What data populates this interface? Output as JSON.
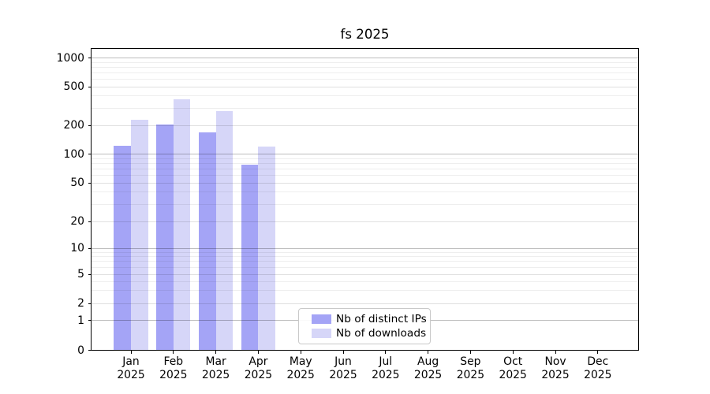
{
  "title": "fs 2025",
  "colors": {
    "distinct_ips_bar": "#a4a4f6",
    "downloads_bar": "#d6d6f8",
    "axis": "#000000",
    "grid_major_decade": "#bdbdbd",
    "grid_major_sub": "#e0e0e0",
    "grid_minor": "#efefef",
    "legend_border": "#c9c9c9",
    "background": "#ffffff"
  },
  "y_axis": {
    "ticks": [
      0,
      1,
      2,
      5,
      10,
      20,
      50,
      100,
      200,
      500,
      1000
    ]
  },
  "x_axis": {
    "months": [
      "Jan",
      "Feb",
      "Mar",
      "Apr",
      "May",
      "Jun",
      "Jul",
      "Aug",
      "Sep",
      "Oct",
      "Nov",
      "Dec"
    ],
    "year": "2025"
  },
  "legend": {
    "items": [
      {
        "label": "Nb of distinct IPs",
        "color": "#a4a4f6"
      },
      {
        "label": "Nb of downloads",
        "color": "#d6d6f8"
      }
    ]
  },
  "chart_data": {
    "type": "bar",
    "title": "fs 2025",
    "categories": [
      "Jan 2025",
      "Feb 2025",
      "Mar 2025",
      "Apr 2025",
      "May 2025",
      "Jun 2025",
      "Jul 2025",
      "Aug 2025",
      "Sep 2025",
      "Oct 2025",
      "Nov 2025",
      "Dec 2025"
    ],
    "series": [
      {
        "name": "Nb of distinct IPs",
        "color": "#a4a4f6",
        "values": [
          122,
          202,
          170,
          77,
          null,
          null,
          null,
          null,
          null,
          null,
          null,
          null
        ]
      },
      {
        "name": "Nb of downloads",
        "color": "#d6d6f8",
        "values": [
          230,
          372,
          281,
          120,
          null,
          null,
          null,
          null,
          null,
          null,
          null,
          null
        ]
      }
    ],
    "xlabel": "",
    "ylabel": "",
    "yscale": "symlog",
    "yticks": [
      0,
      1,
      2,
      5,
      10,
      20,
      50,
      100,
      200,
      500,
      1000
    ],
    "ylim": [
      0,
      1250
    ],
    "grid": "horizontal major and minor gridlines, drawn above bars",
    "legend_position": "inside axes, bottom, left of center"
  }
}
